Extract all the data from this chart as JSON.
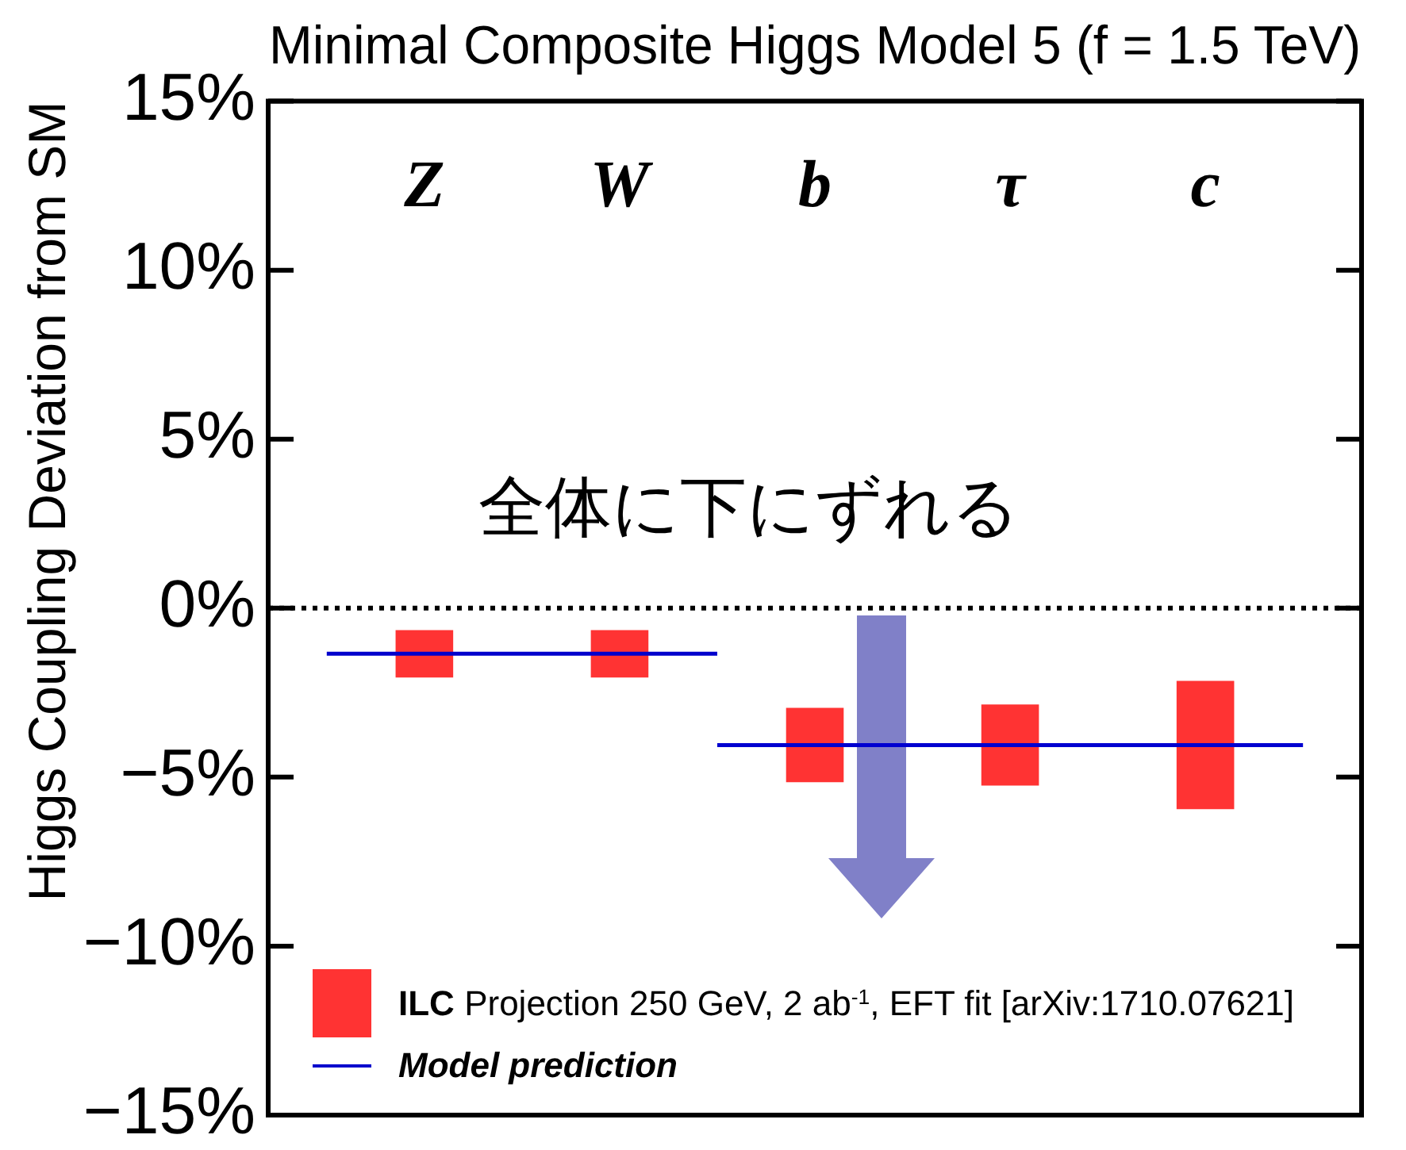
{
  "chart_data": {
    "type": "bar",
    "title": "Minimal Composite Higgs Model 5 (f = 1.5 TeV)",
    "ylabel": "Higgs Coupling Deviation from SM",
    "categories": [
      null,
      "Z",
      null,
      "W",
      null,
      "b",
      null,
      "τ",
      null,
      "c",
      null
    ],
    "series": [
      {
        "name": "ILC Projection 250 GeV, 2 ab$^{-1}$, EFT fit [arXiv:1710.07621]",
        "color": "#ff3333",
        "base": [
          null,
          -2.05,
          null,
          -2.05,
          null,
          -5.15,
          null,
          -5.25,
          null,
          -5.95,
          null
        ],
        "values": [
          null,
          1.4,
          null,
          1.4,
          null,
          2.2,
          null,
          2.4,
          null,
          3.8,
          null
        ]
      },
      {
        "name": "Model prediction",
        "type": "line",
        "color": "#0000cc",
        "values": [
          -1.35,
          -1.35,
          -1.35,
          -1.35,
          -1.35,
          null,
          null,
          null,
          null,
          null,
          null
        ]
      },
      {
        "type": "line",
        "color": "#0000d0",
        "values": [
          null,
          null,
          null,
          null,
          -4.05,
          -4.05,
          -4.05,
          -4.05,
          -4.05,
          -4.05,
          -4.05
        ]
      }
    ],
    "ylim": [
      -15,
      15
    ],
    "yticks": [
      {
        "value": -15,
        "label": "−15%"
      },
      {
        "value": -10,
        "label": "−10%"
      },
      {
        "value": -5,
        "label": "−5%"
      },
      {
        "value": 0,
        "label": "0%"
      },
      {
        "value": 5,
        "label": "5%"
      },
      {
        "value": 10,
        "label": "10%"
      },
      {
        "value": 15,
        "label": "15%"
      }
    ],
    "ref_lines": [
      {
        "axis": "y",
        "value": 0,
        "color": "#000000",
        "line_style": "dotted"
      }
    ],
    "annotations": [
      "全体に下にずれる"
    ],
    "legend": "bottom left"
  }
}
